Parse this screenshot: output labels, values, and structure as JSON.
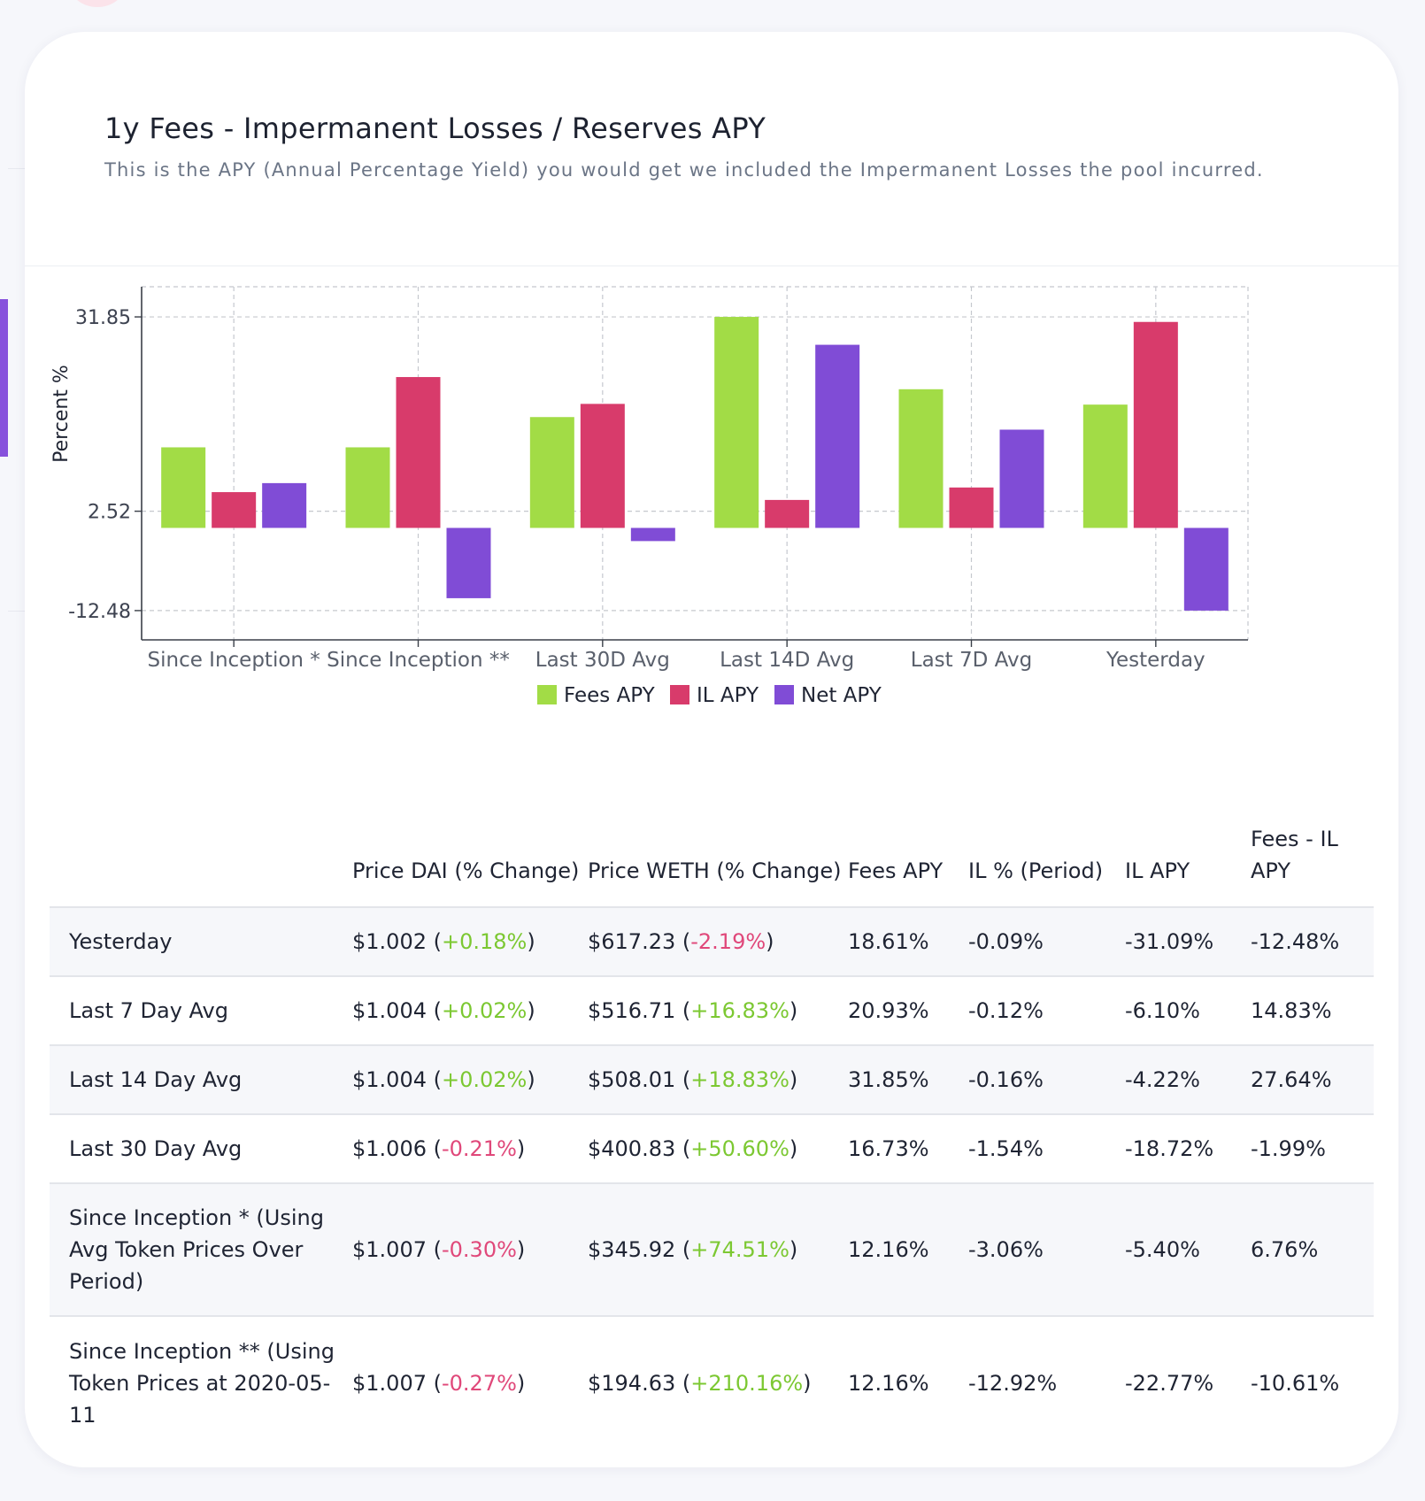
{
  "card": {
    "title": "1y Fees - Impermanent Losses / Reserves APY",
    "subtitle": "This is the APY (Annual Percentage Yield) you would get we included the Impermanent Losses the pool incurred."
  },
  "colors": {
    "fees": "#a2dc46",
    "il": "#d83b6b",
    "net": "#804cd6",
    "positive_text": "#7cc832",
    "negative_text": "#e0487a"
  },
  "chart_data": {
    "type": "bar",
    "title": "",
    "xlabel": "",
    "ylabel": "Percent %",
    "categories": [
      "Since Inception *",
      "Since Inception **",
      "Last 30D Avg",
      "Last 14D Avg",
      "Last 7D Avg",
      "Yesterday"
    ],
    "series": [
      {
        "name": "Fees APY",
        "values": [
          12.16,
          12.16,
          16.73,
          31.85,
          20.93,
          18.61
        ]
      },
      {
        "name": "IL APY",
        "values": [
          5.4,
          22.77,
          18.72,
          4.22,
          6.1,
          31.09
        ]
      },
      {
        "name": "Net APY",
        "values": [
          6.76,
          -10.61,
          -1.99,
          27.64,
          14.83,
          -12.48
        ]
      }
    ],
    "yticks": [
      "31.85",
      "2.52",
      "-12.48"
    ],
    "ylim": [
      -16.9,
      36.4
    ],
    "grid": true,
    "legend_position": "bottom-center"
  },
  "table": {
    "headers": [
      "",
      "Price DAI (% Change)",
      "Price WETH (% Change)",
      "Fees APY",
      "IL % (Period)",
      "IL APY",
      "Fees - IL APY"
    ],
    "rows": [
      {
        "label": "Yesterday",
        "dai_price": "$1.002",
        "dai_change": "+0.18%",
        "dai_dir": "pos",
        "weth_price": "$617.23",
        "weth_change": "-2.19%",
        "weth_dir": "neg",
        "fees_apy": "18.61%",
        "il_period": "-0.09%",
        "il_apy": "-31.09%",
        "fees_il_apy": "-12.48%"
      },
      {
        "label": "Last 7 Day Avg",
        "dai_price": "$1.004",
        "dai_change": "+0.02%",
        "dai_dir": "pos",
        "weth_price": "$516.71",
        "weth_change": "+16.83%",
        "weth_dir": "pos",
        "fees_apy": "20.93%",
        "il_period": "-0.12%",
        "il_apy": "-6.10%",
        "fees_il_apy": "14.83%"
      },
      {
        "label": "Last 14 Day Avg",
        "dai_price": "$1.004",
        "dai_change": "+0.02%",
        "dai_dir": "pos",
        "weth_price": "$508.01",
        "weth_change": "+18.83%",
        "weth_dir": "pos",
        "fees_apy": "31.85%",
        "il_period": "-0.16%",
        "il_apy": "-4.22%",
        "fees_il_apy": "27.64%"
      },
      {
        "label": "Last 30 Day Avg",
        "dai_price": "$1.006",
        "dai_change": "-0.21%",
        "dai_dir": "neg",
        "weth_price": "$400.83",
        "weth_change": "+50.60%",
        "weth_dir": "pos",
        "fees_apy": "16.73%",
        "il_period": "-1.54%",
        "il_apy": "-18.72%",
        "fees_il_apy": "-1.99%"
      },
      {
        "label": "Since Inception * (Using Avg Token Prices Over Period)",
        "dai_price": "$1.007",
        "dai_change": "-0.30%",
        "dai_dir": "neg",
        "weth_price": "$345.92",
        "weth_change": "+74.51%",
        "weth_dir": "pos",
        "fees_apy": "12.16%",
        "il_period": "-3.06%",
        "il_apy": "-5.40%",
        "fees_il_apy": "6.76%"
      },
      {
        "label": "Since Inception ** (Using Token Prices at 2020-05-11",
        "dai_price": "$1.007",
        "dai_change": "-0.27%",
        "dai_dir": "neg",
        "weth_price": "$194.63",
        "weth_change": "+210.16%",
        "weth_dir": "pos",
        "fees_apy": "12.16%",
        "il_period": "-12.92%",
        "il_apy": "-22.77%",
        "fees_il_apy": "-10.61%"
      }
    ]
  }
}
